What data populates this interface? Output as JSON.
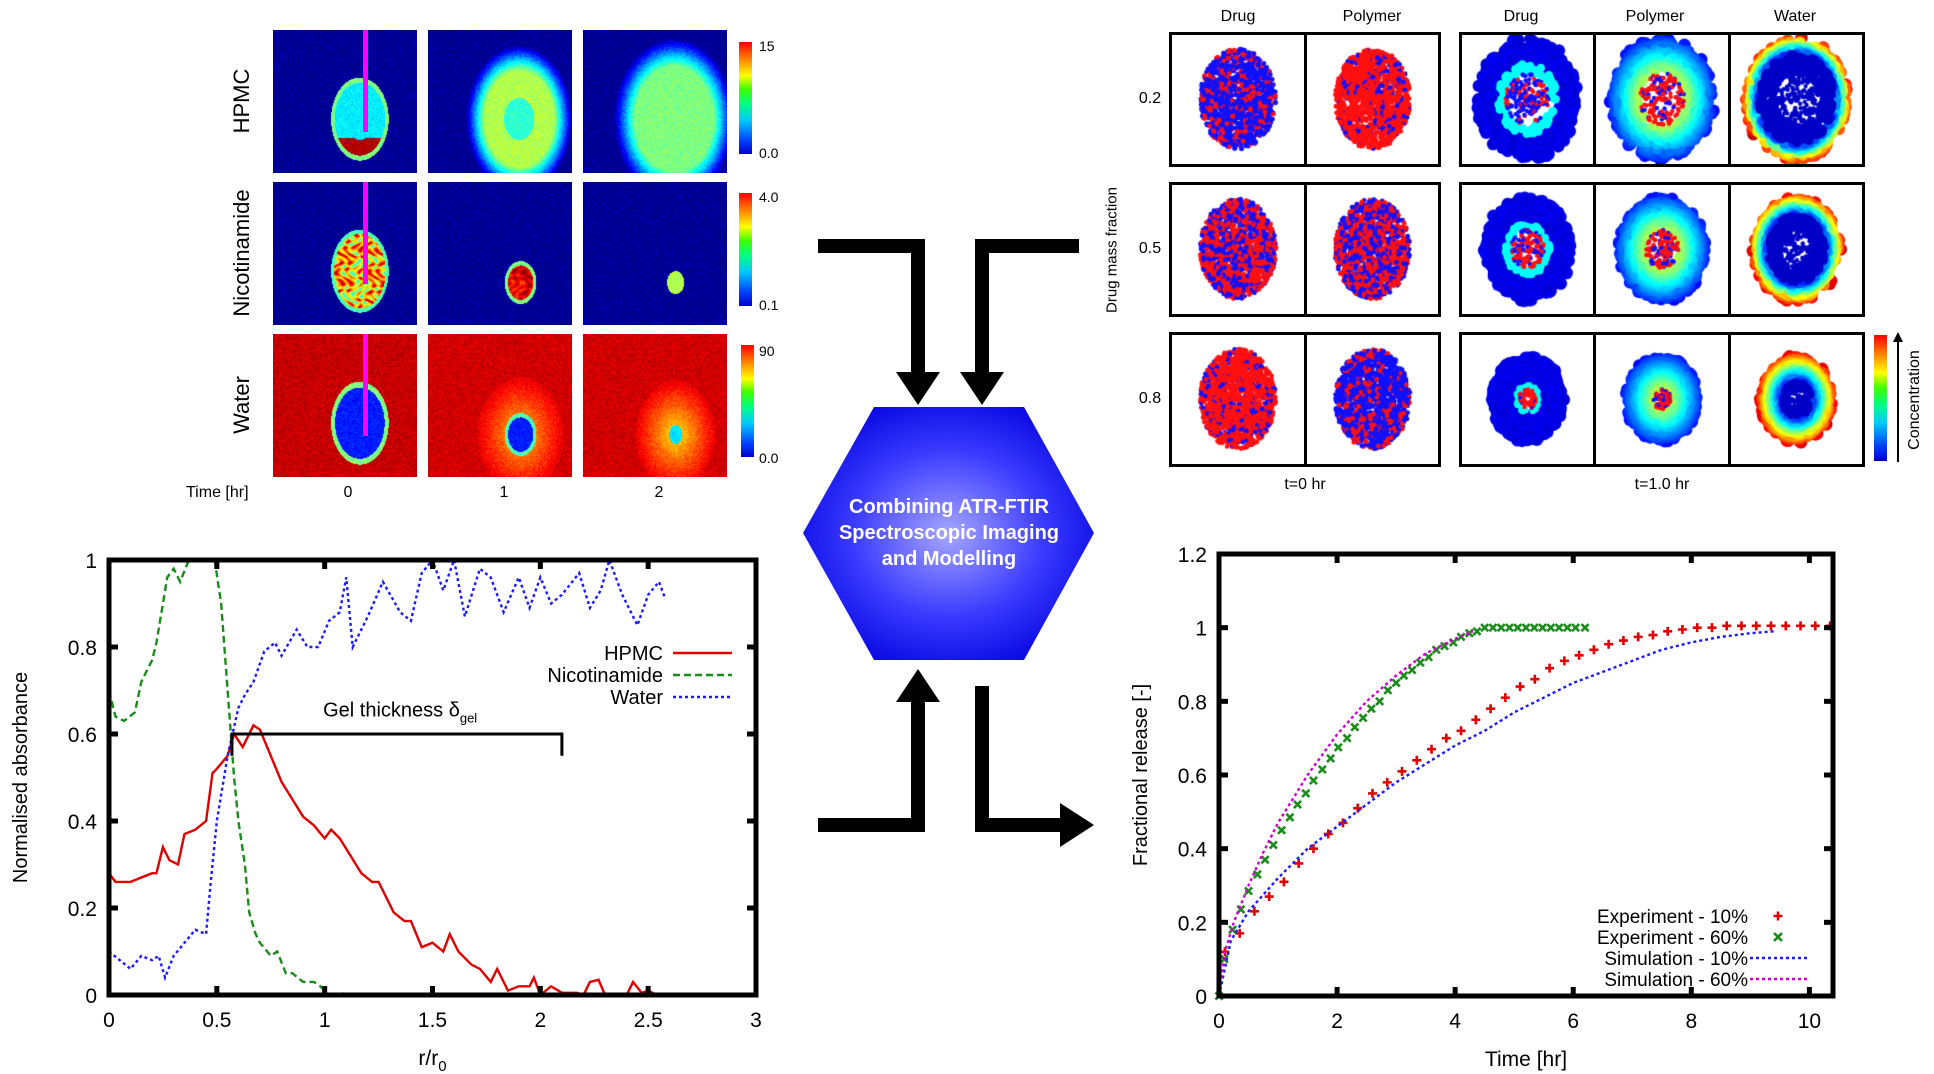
{
  "imaging": {
    "rows": [
      "HPMC",
      "Nicotinamide",
      "Water"
    ],
    "time_label": "Time [hr]",
    "times": [
      "0",
      "1",
      "2"
    ],
    "colorbars": [
      {
        "max": "15",
        "min": "0.0"
      },
      {
        "max": "4.0",
        "min": "0.1"
      },
      {
        "max": "90",
        "min": "0.0"
      }
    ]
  },
  "simulation": {
    "group_t0_columns": [
      "Drug",
      "Polymer"
    ],
    "group_t1_columns": [
      "Drug",
      "Polymer",
      "Water"
    ],
    "row_values": [
      "0.2",
      "0.5",
      "0.8"
    ],
    "y_label": "Drug mass fraction",
    "t0_label": "t=0 hr",
    "t1_label": "t=1.0 hr",
    "colorbar_label": "Concentration"
  },
  "center": {
    "lines": [
      "Combining ATR-FTIR",
      "Spectroscopic Imaging",
      "and Modelling"
    ],
    "color": "#1a1aff"
  },
  "chart_data": [
    {
      "type": "line",
      "xlabel": "r/r",
      "xlabel_sub": "0",
      "ylabel": "Normalised absorbance",
      "xlim": [
        0,
        3
      ],
      "ylim": [
        0,
        1
      ],
      "xticks": [
        "0",
        "0.5",
        "1",
        "1.5",
        "2",
        "2.5",
        "3"
      ],
      "yticks": [
        "0",
        "0.2",
        "0.4",
        "0.6",
        "0.8",
        "1"
      ],
      "grid": false,
      "legend": "top-right",
      "annotation": {
        "text": "Gel thickness δ",
        "sub": "gel",
        "x_from": 0.57,
        "x_to": 2.1,
        "y": 0.6
      },
      "series": [
        {
          "name": "HPMC",
          "color": "#e00000",
          "style": "solid",
          "x": [
            0,
            0.03,
            0.1,
            0.15,
            0.2,
            0.22,
            0.25,
            0.28,
            0.32,
            0.35,
            0.4,
            0.45,
            0.48,
            0.5,
            0.55,
            0.58,
            0.62,
            0.67,
            0.7,
            0.75,
            0.8,
            0.85,
            0.9,
            0.95,
            1.0,
            1.03,
            1.07,
            1.12,
            1.17,
            1.22,
            1.25,
            1.32,
            1.37,
            1.4,
            1.45,
            1.5,
            1.55,
            1.58,
            1.62,
            1.68,
            1.72,
            1.77,
            1.8,
            1.85,
            1.9,
            1.95,
            1.97,
            2.0,
            2.05,
            2.1,
            2.17,
            2.2,
            2.23,
            2.27,
            2.3,
            2.4,
            2.43,
            2.47,
            2.5,
            2.54
          ],
          "y": [
            0.28,
            0.26,
            0.26,
            0.27,
            0.28,
            0.28,
            0.34,
            0.31,
            0.3,
            0.37,
            0.38,
            0.4,
            0.51,
            0.52,
            0.55,
            0.6,
            0.57,
            0.62,
            0.61,
            0.55,
            0.49,
            0.45,
            0.41,
            0.39,
            0.36,
            0.38,
            0.36,
            0.32,
            0.28,
            0.26,
            0.26,
            0.19,
            0.17,
            0.17,
            0.11,
            0.12,
            0.1,
            0.14,
            0.1,
            0.07,
            0.06,
            0.03,
            0.06,
            0.01,
            0.02,
            0.02,
            0.04,
            0.0,
            0.02,
            0.005,
            0.005,
            0.0,
            0.03,
            0.035,
            0.0,
            0.0,
            0.03,
            0.005,
            0.01,
            0.0
          ]
        },
        {
          "name": "Nicotinamide",
          "color": "#1a8c1a",
          "style": "dashed",
          "x": [
            0,
            0.03,
            0.07,
            0.12,
            0.15,
            0.2,
            0.22,
            0.27,
            0.3,
            0.33,
            0.37,
            0.45,
            0.49,
            0.52,
            0.55,
            0.58,
            0.6,
            0.63,
            0.65,
            0.68,
            0.7,
            0.75,
            0.78,
            0.82,
            0.85,
            0.9,
            0.95,
            0.98,
            1.02,
            1.06,
            1.1,
            1.12
          ],
          "y": [
            0.7,
            0.64,
            0.63,
            0.65,
            0.72,
            0.77,
            0.81,
            0.96,
            0.98,
            0.95,
            1.0,
            1.0,
            1.0,
            0.9,
            0.7,
            0.5,
            0.4,
            0.3,
            0.19,
            0.14,
            0.12,
            0.09,
            0.1,
            0.05,
            0.05,
            0.03,
            0.03,
            0.02,
            0.0,
            0.0,
            0.005,
            0.0
          ]
        },
        {
          "name": "Water",
          "color": "#1a1aff",
          "style": "dotted",
          "x": [
            0,
            0.05,
            0.1,
            0.15,
            0.2,
            0.23,
            0.26,
            0.3,
            0.35,
            0.4,
            0.45,
            0.47,
            0.5,
            0.55,
            0.6,
            0.63,
            0.67,
            0.72,
            0.77,
            0.8,
            0.87,
            0.92,
            0.97,
            1.02,
            1.07,
            1.1,
            1.13,
            1.2,
            1.27,
            1.35,
            1.4,
            1.45,
            1.5,
            1.55,
            1.6,
            1.65,
            1.72,
            1.77,
            1.83,
            1.9,
            1.95,
            2.0,
            2.05,
            2.1,
            2.18,
            2.23,
            2.28,
            2.32,
            2.38,
            2.45,
            2.5,
            2.55,
            2.58
          ],
          "y": [
            0.1,
            0.08,
            0.06,
            0.09,
            0.08,
            0.09,
            0.04,
            0.09,
            0.12,
            0.15,
            0.14,
            0.25,
            0.4,
            0.55,
            0.66,
            0.69,
            0.72,
            0.79,
            0.81,
            0.78,
            0.84,
            0.8,
            0.8,
            0.86,
            0.88,
            0.96,
            0.8,
            0.87,
            0.95,
            0.88,
            0.86,
            0.97,
            1.0,
            0.93,
            1.0,
            0.87,
            0.98,
            0.96,
            0.88,
            0.96,
            0.89,
            0.96,
            0.9,
            0.92,
            0.97,
            0.89,
            0.93,
            1.0,
            0.92,
            0.85,
            0.92,
            0.95,
            0.91
          ]
        }
      ]
    },
    {
      "type": "scatter",
      "xlabel": "Time [hr]",
      "ylabel": "Fractional release [-]",
      "xlim": [
        0,
        10.4
      ],
      "ylim": [
        0,
        1.2
      ],
      "xticks": [
        "0",
        "2",
        "4",
        "6",
        "8",
        "10"
      ],
      "yticks": [
        "0",
        "0.2",
        "0.4",
        "0.6",
        "0.8",
        "1",
        "1.2"
      ],
      "grid": false,
      "legend": "bottom-right",
      "series": [
        {
          "name": "Experiment - 10%",
          "color": "#e00000",
          "marker": "plus",
          "x": [
            0.1,
            0.35,
            0.6,
            0.85,
            1.1,
            1.35,
            1.6,
            1.85,
            2.1,
            2.35,
            2.6,
            2.85,
            3.1,
            3.35,
            3.6,
            3.85,
            4.1,
            4.35,
            4.6,
            4.85,
            5.1,
            5.35,
            5.6,
            5.85,
            6.1,
            6.35,
            6.6,
            6.85,
            7.1,
            7.35,
            7.6,
            7.85,
            8.1,
            8.35,
            8.6,
            8.85,
            9.1,
            9.35,
            9.6,
            9.85,
            10.1,
            10.35
          ],
          "y": [
            0.12,
            0.17,
            0.23,
            0.27,
            0.31,
            0.36,
            0.4,
            0.44,
            0.47,
            0.51,
            0.55,
            0.58,
            0.61,
            0.64,
            0.67,
            0.7,
            0.72,
            0.75,
            0.78,
            0.81,
            0.84,
            0.86,
            0.89,
            0.91,
            0.925,
            0.94,
            0.955,
            0.965,
            0.975,
            0.98,
            0.99,
            0.995,
            1.0,
            1.0,
            1.005,
            1.005,
            1.005,
            1.005,
            1.005,
            1.005,
            1.005,
            1.005
          ]
        },
        {
          "name": "Experiment - 60%",
          "color": "#1a8c1a",
          "marker": "cross",
          "x": [
            0,
            0.09,
            0.23,
            0.37,
            0.5,
            0.65,
            0.78,
            0.92,
            1.06,
            1.2,
            1.33,
            1.47,
            1.6,
            1.75,
            1.89,
            2.02,
            2.17,
            2.3,
            2.44,
            2.58,
            2.72,
            2.86,
            3.0,
            3.13,
            3.27,
            3.41,
            3.55,
            3.68,
            3.82,
            3.97,
            4.1,
            4.24,
            4.37,
            4.5,
            4.64,
            4.78,
            4.92,
            5.06,
            5.2,
            5.34,
            5.48,
            5.62,
            5.76,
            5.9,
            6.04,
            6.2
          ],
          "y": [
            0,
            0.1,
            0.18,
            0.235,
            0.285,
            0.33,
            0.37,
            0.41,
            0.45,
            0.485,
            0.52,
            0.55,
            0.585,
            0.615,
            0.645,
            0.675,
            0.7,
            0.73,
            0.755,
            0.78,
            0.8,
            0.83,
            0.85,
            0.87,
            0.885,
            0.905,
            0.92,
            0.94,
            0.95,
            0.96,
            0.975,
            0.985,
            0.99,
            1.0,
            1.0,
            1.0,
            1.0,
            1.0,
            1.0,
            1.0,
            1.0,
            1.0,
            1.0,
            1.0,
            1.0,
            1.0
          ]
        },
        {
          "name": "Simulation - 10%",
          "color": "#1a1aff",
          "style": "dotted",
          "x": [
            0,
            0.2,
            0.5,
            1,
            1.5,
            2,
            2.5,
            3,
            3.5,
            4,
            4.5,
            5,
            5.5,
            6,
            6.5,
            7,
            7.5,
            8,
            8.5,
            9,
            9.4
          ],
          "y": [
            0,
            0.15,
            0.23,
            0.32,
            0.4,
            0.46,
            0.52,
            0.58,
            0.63,
            0.68,
            0.72,
            0.77,
            0.81,
            0.85,
            0.88,
            0.91,
            0.94,
            0.96,
            0.975,
            0.985,
            0.99
          ]
        },
        {
          "name": "Simulation - 60%",
          "color": "#d000d0",
          "style": "dotted",
          "x": [
            0,
            0.1,
            0.25,
            0.5,
            0.75,
            1,
            1.5,
            2,
            2.5,
            3,
            3.5,
            4,
            4.3
          ],
          "y": [
            0,
            0.12,
            0.2,
            0.3,
            0.39,
            0.47,
            0.6,
            0.71,
            0.8,
            0.87,
            0.93,
            0.97,
            0.99
          ]
        }
      ]
    }
  ]
}
